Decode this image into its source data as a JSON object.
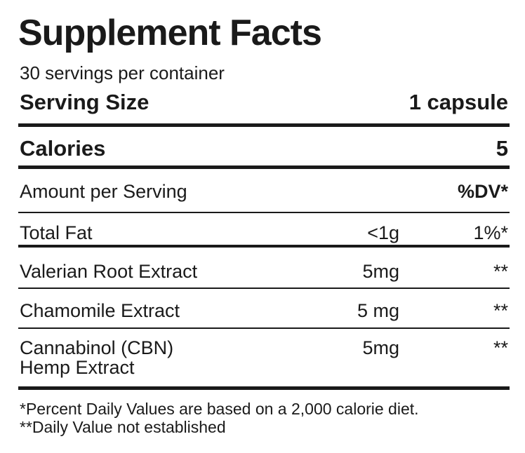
{
  "title": "Supplement Facts",
  "servings_per_container": "30 servings per container",
  "serving_size": {
    "label": "Serving Size",
    "value": "1 capsule"
  },
  "calories": {
    "label": "Calories",
    "value": "5"
  },
  "amount_header": {
    "label": "Amount per Serving",
    "dv_label": "%DV*"
  },
  "nutrients": [
    {
      "name": "Total Fat",
      "amount": "<1g",
      "dv": "1%*"
    },
    {
      "name": "Valerian Root Extract",
      "amount": "5mg",
      "dv": "**"
    },
    {
      "name": "Chamomile Extract",
      "amount": "5 mg",
      "dv": "**"
    },
    {
      "name_line1": "Cannabinol (CBN)",
      "name_line2": "Hemp Extract",
      "amount": "5mg",
      "dv": "**"
    }
  ],
  "footnotes": [
    "*Percent Daily Values are based on a 2,000 calorie diet.",
    "**Daily Value not established"
  ]
}
